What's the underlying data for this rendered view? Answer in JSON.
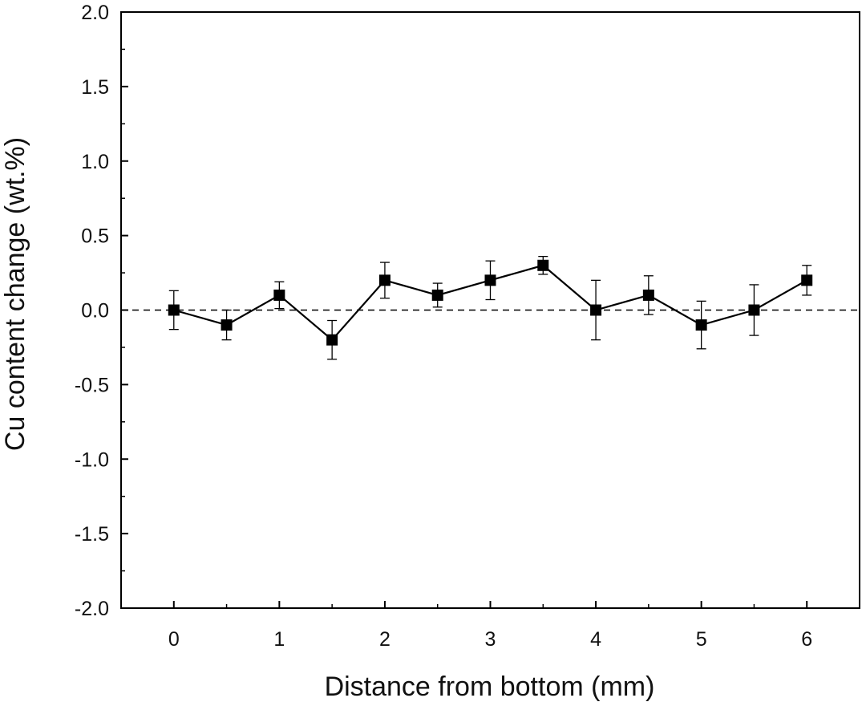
{
  "chart_data": {
    "type": "scatter",
    "xlabel": "Distance from bottom (mm)",
    "ylabel": "Cu content change (wt.%)",
    "xlim": [
      -0.5,
      6.5
    ],
    "ylim": [
      -2.0,
      2.0
    ],
    "x_ticks": [
      0,
      1,
      2,
      3,
      4,
      5,
      6
    ],
    "x_tick_labels": [
      "0",
      "1",
      "2",
      "3",
      "4",
      "5",
      "6"
    ],
    "y_ticks": [
      -2.0,
      -1.5,
      -1.0,
      -0.5,
      0.0,
      0.5,
      1.0,
      1.5,
      2.0
    ],
    "y_tick_labels": [
      "-2.0",
      "-1.5",
      "-1.0",
      "-0.5",
      "0.0",
      "0.5",
      "1.0",
      "1.5",
      "2.0"
    ],
    "grid": false,
    "reference_line": {
      "y": 0.0,
      "style": "dashed"
    },
    "series": [
      {
        "marker": "filled-square",
        "line": "solid",
        "color": "#000000",
        "x": [
          0,
          0.5,
          1,
          1.5,
          2,
          2.5,
          3,
          3.5,
          4,
          4.5,
          5,
          5.5,
          6
        ],
        "y": [
          0.0,
          -0.1,
          0.1,
          -0.2,
          0.2,
          0.1,
          0.2,
          0.3,
          0.0,
          0.1,
          -0.1,
          0.0,
          0.2
        ],
        "err_upper": [
          0.13,
          0.1,
          0.09,
          0.13,
          0.12,
          0.08,
          0.13,
          0.06,
          0.2,
          0.13,
          0.16,
          0.17,
          0.1
        ],
        "err_lower": [
          0.13,
          0.1,
          0.09,
          0.13,
          0.12,
          0.08,
          0.13,
          0.06,
          0.2,
          0.13,
          0.16,
          0.17,
          0.1
        ]
      }
    ]
  }
}
